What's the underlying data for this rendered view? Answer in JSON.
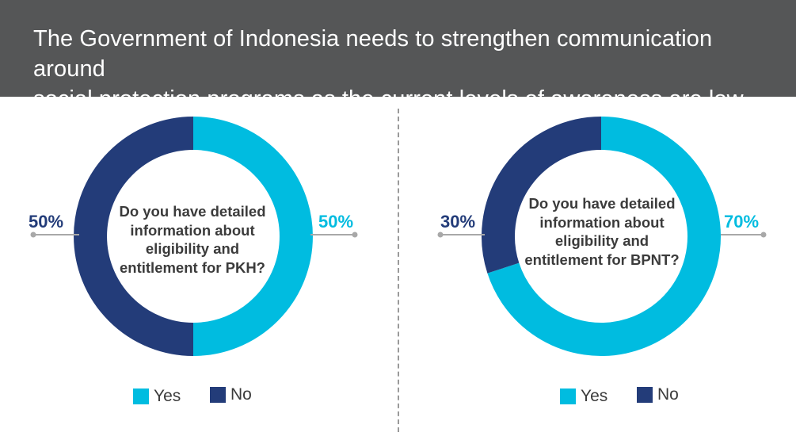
{
  "header": {
    "title_line1": "The Government of Indonesia needs to strengthen communication around",
    "title_line2": "social protection programs as the current levels of awareness are low"
  },
  "colors": {
    "yes": "#00BCE0",
    "no": "#233C79",
    "header_bg": "#555657",
    "leader_line": "#a8a8a8"
  },
  "chart_data": [
    {
      "type": "pie",
      "title": "Do you have detailed information about eligibility and entitlement for PKH?",
      "categories": [
        "Yes",
        "No"
      ],
      "values": [
        50,
        50
      ],
      "labels": {
        "yes": "50%",
        "no": "50%"
      },
      "legend": {
        "yes": "Yes",
        "no": "No"
      }
    },
    {
      "type": "pie",
      "title": "Do you have detailed information about eligibility and entitlement for BPNT?",
      "categories": [
        "Yes",
        "No"
      ],
      "values": [
        70,
        30
      ],
      "labels": {
        "yes": "70%",
        "no": "30%"
      },
      "legend": {
        "yes": "Yes",
        "no": "No"
      }
    }
  ],
  "questions": {
    "pkh": [
      "Do you have detailed",
      "information about",
      "eligibility and",
      "entitlement for PKH?"
    ],
    "bpnt": [
      "Do you have detailed",
      "information about",
      "eligibility and",
      "entitlement for BPNT?"
    ]
  }
}
